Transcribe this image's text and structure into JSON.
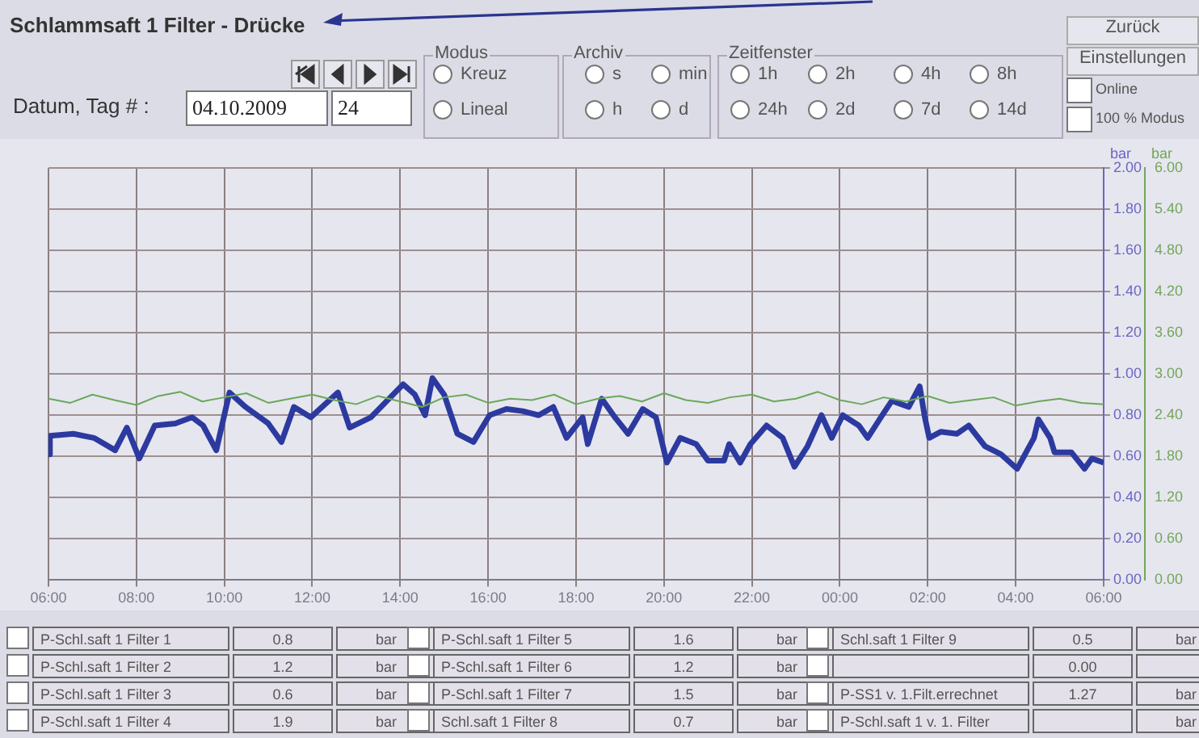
{
  "chart_data": [
    {
      "type": "other",
      "title": "Schlammsaft 1 Filter - Drücke",
      "annotations": [
        "Datum, Tag # :",
        "04.10.2009",
        "24",
        "Modus",
        "Kreuz",
        "Lineal",
        "Archiv",
        "s",
        "min",
        "h",
        "d",
        "Zeitfenster",
        "1h",
        "2h",
        "4h",
        "8h",
        "24h",
        "2d",
        "7d",
        "14d",
        "Zurück",
        "Einstellungen",
        "Online",
        "100 % Modus"
      ]
    },
    {
      "type": "line",
      "ylabel": "bar",
      "y2label": "bar",
      "grid": true,
      "legend": false,
      "marker": "none",
      "line_style": "solid",
      "xlim": [
        "2009-10-04T06:00",
        "2009-10-05T06:00"
      ],
      "xticks": [
        {
          "value": "2009-10-04T06:00",
          "label": "06:00"
        },
        {
          "value": "2009-10-04T08:00",
          "label": "08:00"
        },
        {
          "value": "2009-10-04T10:00",
          "label": "10:00"
        },
        {
          "value": "2009-10-04T12:00",
          "label": "12:00"
        },
        {
          "value": "2009-10-04T14:00",
          "label": "14:00"
        },
        {
          "value": "2009-10-04T16:00",
          "label": "16:00"
        },
        {
          "value": "2009-10-04T18:00",
          "label": "18:00"
        },
        {
          "value": "2009-10-04T20:00",
          "label": "20:00"
        },
        {
          "value": "2009-10-04T22:00",
          "label": "22:00"
        },
        {
          "value": "2009-10-05T00:00",
          "label": "00:00"
        },
        {
          "value": "2009-10-05T02:00",
          "label": "02:00"
        },
        {
          "value": "2009-10-05T04:00",
          "label": "04:00"
        },
        {
          "value": "2009-10-05T06:00",
          "label": "06:00"
        }
      ],
      "ylim": [
        0,
        2
      ],
      "yticks": [
        {
          "value": 0,
          "label": "0.00"
        },
        {
          "value": 0.2,
          "label": "0.20"
        },
        {
          "value": 0.4,
          "label": "0.40"
        },
        {
          "value": 0.6,
          "label": "0.60"
        },
        {
          "value": 0.8,
          "label": "0.80"
        },
        {
          "value": 1,
          "label": "1.00"
        },
        {
          "value": 1.2,
          "label": "1.20"
        },
        {
          "value": 1.4,
          "label": "1.40"
        },
        {
          "value": 1.6,
          "label": "1.60"
        },
        {
          "value": 1.8,
          "label": "1.80"
        },
        {
          "value": 2,
          "label": "2.00"
        }
      ],
      "y2lim": [
        0,
        6
      ],
      "y2ticks": [
        {
          "value": 0,
          "label": "0.00"
        },
        {
          "value": 0.6,
          "label": "0.60"
        },
        {
          "value": 1.2,
          "label": "1.20"
        },
        {
          "value": 1.8,
          "label": "1.80"
        },
        {
          "value": 2.4,
          "label": "2.40"
        },
        {
          "value": 3,
          "label": "3.00"
        },
        {
          "value": 3.6,
          "label": "3.60"
        },
        {
          "value": 4.2,
          "label": "4.20"
        },
        {
          "value": 4.8,
          "label": "4.80"
        },
        {
          "value": 5.4,
          "label": "5.40"
        },
        {
          "value": 6,
          "label": "6.00"
        }
      ],
      "series": [
        {
          "color": "#6aa85a",
          "axis": "y2",
          "x": [
            "2009-10-04T06:00",
            "2009-10-04T06:30",
            "2009-10-04T07:00",
            "2009-10-04T07:30",
            "2009-10-04T08:00",
            "2009-10-04T08:30",
            "2009-10-04T09:00",
            "2009-10-04T09:30",
            "2009-10-04T10:00",
            "2009-10-04T10:30",
            "2009-10-04T11:00",
            "2009-10-04T11:30",
            "2009-10-04T12:00",
            "2009-10-04T12:30",
            "2009-10-04T13:00",
            "2009-10-04T13:30",
            "2009-10-04T14:00",
            "2009-10-04T14:30",
            "2009-10-04T15:00",
            "2009-10-04T15:30",
            "2009-10-04T16:00",
            "2009-10-04T16:30",
            "2009-10-04T17:00",
            "2009-10-04T17:30",
            "2009-10-04T18:00",
            "2009-10-04T18:30",
            "2009-10-04T19:00",
            "2009-10-04T19:30",
            "2009-10-04T20:00",
            "2009-10-04T20:30",
            "2009-10-04T21:00",
            "2009-10-04T21:30",
            "2009-10-04T22:00",
            "2009-10-04T22:30",
            "2009-10-04T23:00",
            "2009-10-04T23:30",
            "2009-10-05T00:00",
            "2009-10-05T00:30",
            "2009-10-05T01:00",
            "2009-10-05T01:30",
            "2009-10-05T02:00",
            "2009-10-05T02:30",
            "2009-10-05T03:00",
            "2009-10-05T03:30",
            "2009-10-05T04:00",
            "2009-10-05T04:30",
            "2009-10-05T05:00",
            "2009-10-05T05:30",
            "2009-10-05T06:00"
          ],
          "values": [
            2.64,
            2.58,
            2.7,
            2.62,
            2.55,
            2.68,
            2.74,
            2.6,
            2.66,
            2.72,
            2.58,
            2.64,
            2.7,
            2.62,
            2.56,
            2.68,
            2.6,
            2.52,
            2.66,
            2.7,
            2.58,
            2.64,
            2.62,
            2.7,
            2.56,
            2.64,
            2.68,
            2.6,
            2.72,
            2.62,
            2.58,
            2.66,
            2.7,
            2.6,
            2.64,
            2.74,
            2.62,
            2.56,
            2.66,
            2.6,
            2.68,
            2.58,
            2.62,
            2.66,
            2.54,
            2.6,
            2.64,
            2.58,
            2.56
          ]
        },
        {
          "color": "#2c3aa0",
          "x": [
            "2009-10-04T06:00",
            "2009-10-04T06:02",
            "2009-10-04T06:34",
            "2009-10-04T07:02",
            "2009-10-04T07:31",
            "2009-10-04T07:47",
            "2009-10-04T08:04",
            "2009-10-04T08:25",
            "2009-10-04T08:53",
            "2009-10-04T09:16",
            "2009-10-04T09:31",
            "2009-10-04T09:49",
            "2009-10-04T10:07",
            "2009-10-04T10:29",
            "2009-10-04T11:00",
            "2009-10-04T11:18",
            "2009-10-04T11:35",
            "2009-10-04T11:58",
            "2009-10-04T12:35",
            "2009-10-04T12:51",
            "2009-10-04T13:20",
            "2009-10-04T13:42",
            "2009-10-04T14:04",
            "2009-10-04T14:20",
            "2009-10-04T14:34",
            "2009-10-04T14:44",
            "2009-10-04T15:00",
            "2009-10-04T15:18",
            "2009-10-04T15:40",
            "2009-10-04T16:02",
            "2009-10-04T16:25",
            "2009-10-04T16:47",
            "2009-10-04T17:09",
            "2009-10-04T17:29",
            "2009-10-04T17:47",
            "2009-10-04T18:09",
            "2009-10-04T18:16",
            "2009-10-04T18:35",
            "2009-10-04T18:53",
            "2009-10-04T19:11",
            "2009-10-04T19:31",
            "2009-10-04T19:49",
            "2009-10-04T20:04",
            "2009-10-04T20:22",
            "2009-10-04T20:44",
            "2009-10-04T21:00",
            "2009-10-04T21:22",
            "2009-10-04T21:29",
            "2009-10-04T21:44",
            "2009-10-04T21:58",
            "2009-10-04T22:20",
            "2009-10-04T22:42",
            "2009-10-04T22:58",
            "2009-10-04T23:16",
            "2009-10-04T23:35",
            "2009-10-04T23:49",
            "2009-10-05T00:04",
            "2009-10-05T00:26",
            "2009-10-05T00:38",
            "2009-10-05T00:56",
            "2009-10-05T01:11",
            "2009-10-05T01:34",
            "2009-10-05T01:49",
            "2009-10-05T01:56",
            "2009-10-05T02:02",
            "2009-10-05T02:18",
            "2009-10-05T02:40",
            "2009-10-05T02:56",
            "2009-10-05T03:18",
            "2009-10-05T03:40",
            "2009-10-05T04:02",
            "2009-10-05T04:25",
            "2009-10-05T04:31",
            "2009-10-05T04:47",
            "2009-10-05T04:53",
            "2009-10-05T05:16",
            "2009-10-05T05:34",
            "2009-10-05T05:44",
            "2009-10-05T06:00"
          ],
          "values": [
            0.61,
            0.7,
            0.71,
            0.69,
            0.63,
            0.74,
            0.59,
            0.75,
            0.76,
            0.79,
            0.75,
            0.63,
            0.91,
            0.84,
            0.76,
            0.67,
            0.84,
            0.79,
            0.91,
            0.74,
            0.79,
            0.87,
            0.95,
            0.9,
            0.8,
            0.98,
            0.9,
            0.71,
            0.67,
            0.8,
            0.83,
            0.82,
            0.8,
            0.84,
            0.69,
            0.79,
            0.66,
            0.88,
            0.79,
            0.71,
            0.83,
            0.79,
            0.57,
            0.69,
            0.66,
            0.58,
            0.58,
            0.66,
            0.57,
            0.66,
            0.75,
            0.69,
            0.55,
            0.65,
            0.8,
            0.69,
            0.8,
            0.75,
            0.69,
            0.79,
            0.87,
            0.84,
            0.94,
            0.79,
            0.69,
            0.72,
            0.71,
            0.75,
            0.65,
            0.61,
            0.54,
            0.69,
            0.78,
            0.69,
            0.62,
            0.62,
            0.54,
            0.59,
            0.57
          ]
        }
      ]
    },
    {
      "type": "other",
      "annotations": [
        "P-Schl.saft 1 Filter 1",
        "0.8",
        "bar",
        "P-Schl.saft 1 Filter 2",
        "1.2",
        "bar",
        "P-Schl.saft 1 Filter 3",
        "0.6",
        "bar",
        "P-Schl.saft 1 Filter 4",
        "1.9",
        "bar",
        "P-Schl.saft 1 Filter 5",
        "1.6",
        "bar",
        "P-Schl.saft 1 Filter 6",
        "1.2",
        "bar",
        "P-Schl.saft 1 Filter 7",
        "1.5",
        "bar",
        "Schl.saft 1 Filter 8",
        "0.7",
        "bar",
        "Schl.saft 1 Filter 9",
        "0.5",
        "bar",
        null,
        "0.00",
        null,
        "P-SS1 v. 1.Filt.errechnet",
        "1.27",
        "bar",
        "P-Schl.saft 1 v. 1. Filter",
        null,
        "bar"
      ]
    }
  ]
}
